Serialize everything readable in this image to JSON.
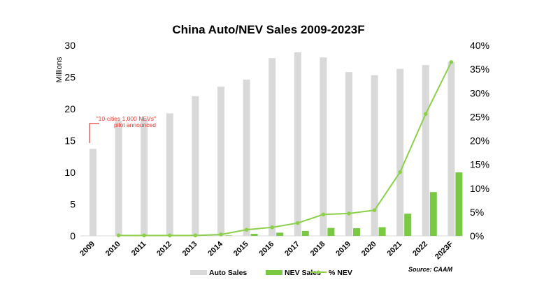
{
  "chart_data": {
    "type": "bar",
    "title": "China Auto/NEV Sales 2009-2023F",
    "ylabel": "Millions",
    "ylim": [
      0,
      30
    ],
    "y2lim": [
      0,
      40
    ],
    "yticks": [
      "0",
      "5",
      "10",
      "15",
      "20",
      "25",
      "30"
    ],
    "y2ticks": [
      "0%",
      "5%",
      "10%",
      "15%",
      "20%",
      "25%",
      "30%",
      "35%",
      "40%"
    ],
    "categories": [
      "2009",
      "2010",
      "2011",
      "2012",
      "2013",
      "2014",
      "2015",
      "2016",
      "2017",
      "2018",
      "2019",
      "2020",
      "2021",
      "2022",
      "2023F"
    ],
    "series": [
      {
        "name": "Auto Sales",
        "type": "bar",
        "color": "#d9d9d9",
        "values": [
          13.7,
          18.1,
          18.5,
          19.3,
          22.0,
          23.5,
          24.6,
          28.0,
          28.9,
          28.1,
          25.8,
          25.3,
          26.3,
          26.9,
          27.4
        ]
      },
      {
        "name": "NEV Sales",
        "type": "bar",
        "color": "#7ac943",
        "values": [
          0,
          0.01,
          0.01,
          0.01,
          0.02,
          0.07,
          0.33,
          0.51,
          0.78,
          1.26,
          1.21,
          1.37,
          3.5,
          6.9,
          10.0
        ]
      },
      {
        "name": "% NEV",
        "type": "line",
        "axis": "right",
        "color": "#8cd04a",
        "values": [
          null,
          0.1,
          0.1,
          0.1,
          0.1,
          0.3,
          1.3,
          1.8,
          2.7,
          4.5,
          4.7,
          5.4,
          13.4,
          25.6,
          36.5
        ]
      }
    ],
    "annotation": {
      "line1": "\"10-cities 1,000 NEVs\"",
      "line2": "pilot announced",
      "color": "#e03c31"
    },
    "legend_position": "bottom",
    "source": "Source: CAAM",
    "grid": false
  }
}
